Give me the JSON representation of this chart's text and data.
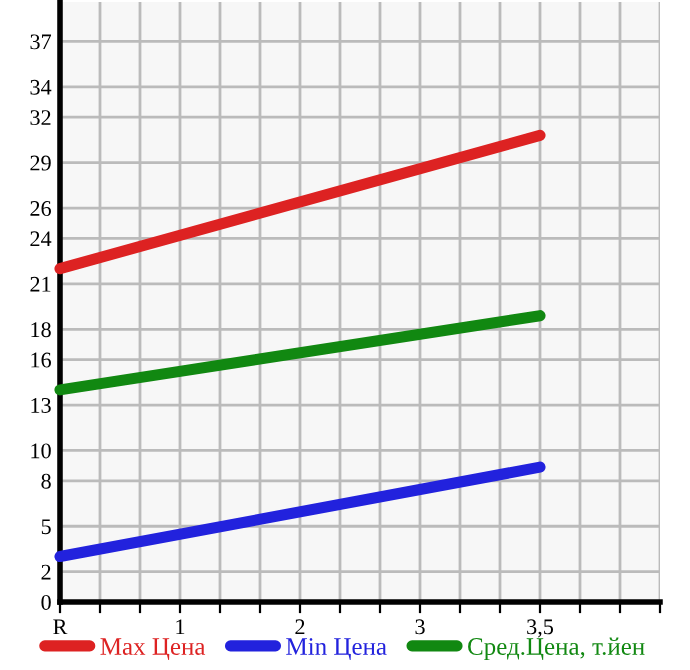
{
  "chart_data": {
    "type": "line",
    "ylim": [
      0,
      39.6
    ],
    "categories": [
      "R",
      null,
      null,
      "1",
      null,
      null,
      "2",
      null,
      null,
      "3",
      null,
      null,
      "3,5",
      null,
      null,
      null
    ],
    "yticks": [
      0,
      2,
      5,
      8,
      10,
      13,
      16,
      18,
      21,
      24,
      26,
      29,
      32,
      34,
      37
    ],
    "grid": true,
    "legend": "bottom",
    "line_style": "solid",
    "marker": "none",
    "series": [
      {
        "name": "Max Цена",
        "color": "#dd2222",
        "values": [
          22,
          null,
          null,
          null,
          null,
          null,
          null,
          null,
          null,
          null,
          null,
          null,
          30.8,
          null,
          null,
          null
        ]
      },
      {
        "name": "Min Цена",
        "color": "#2222dd",
        "values": [
          3,
          null,
          null,
          null,
          null,
          null,
          null,
          null,
          null,
          null,
          null,
          null,
          8.9,
          null,
          null,
          null
        ]
      },
      {
        "name": "Сред.Цена, т.йен",
        "color": "#118811",
        "values": [
          14,
          null,
          null,
          null,
          null,
          null,
          null,
          null,
          null,
          null,
          null,
          null,
          18.9,
          null,
          null,
          null
        ]
      }
    ]
  }
}
